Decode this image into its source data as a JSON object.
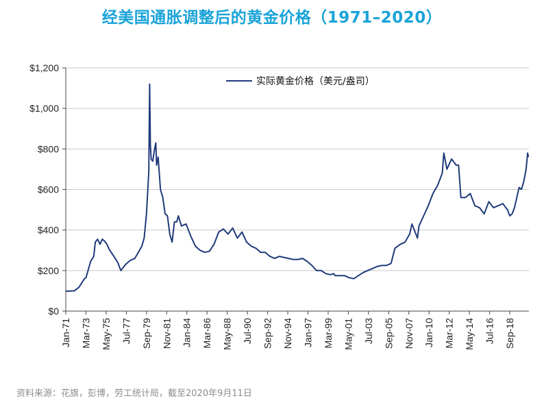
{
  "source": "资料来源：花旗，彭博，劳工统计局，截至2020年9月11日",
  "colors": {
    "title": "#1aa3d9",
    "series": "#1f3a7a",
    "grid": "#c8c8c8",
    "axis": "#444444",
    "source": "#8c8c8c"
  },
  "chart_data": {
    "type": "line",
    "title": "经美国通胀调整后的黄金价格（1971–2020）",
    "xlabel": "",
    "ylabel": "",
    "ylim": [
      0,
      1200
    ],
    "yticks": [
      0,
      200,
      400,
      600,
      800,
      1000,
      1200
    ],
    "ytick_labels": [
      "$0",
      "$200",
      "$400",
      "$600",
      "$800",
      "$1,000",
      "$1,200"
    ],
    "x_tick_labels": [
      "Jan-71",
      "Mar-73",
      "May-75",
      "Jul-77",
      "Sep-79",
      "Nov-81",
      "Jan-84",
      "Mar-86",
      "May-88",
      "Jul-90",
      "Sep-92",
      "Nov-94",
      "Jan-97",
      "Mar-99",
      "May-01",
      "Jul-03",
      "Sep-05",
      "Nov-07",
      "Jan-10",
      "Mar-12",
      "May-14",
      "Jul-16",
      "Sep-18"
    ],
    "grid": true,
    "legend_position": "top-center",
    "series": [
      {
        "name": "实际黄金价格（美元/盎司）",
        "x": [
          "1971-01",
          "1971-12",
          "1972-06",
          "1973-01",
          "1973-03",
          "1973-06",
          "1973-09",
          "1974-01",
          "1974-03",
          "1974-06",
          "1974-09",
          "1974-12",
          "1975-03",
          "1975-06",
          "1975-09",
          "1976-03",
          "1976-08",
          "1976-12",
          "1977-06",
          "1977-12",
          "1978-06",
          "1978-12",
          "1979-03",
          "1979-06",
          "1979-09",
          "1979-12",
          "1980-01",
          "1980-02",
          "1980-03",
          "1980-05",
          "1980-07",
          "1980-09",
          "1980-10",
          "1980-12",
          "1981-03",
          "1981-06",
          "1981-09",
          "1981-12",
          "1982-03",
          "1982-06",
          "1982-09",
          "1982-12",
          "1983-02",
          "1983-06",
          "1983-12",
          "1984-06",
          "1984-12",
          "1985-06",
          "1985-12",
          "1986-06",
          "1986-12",
          "1987-06",
          "1987-12",
          "1988-06",
          "1988-12",
          "1989-06",
          "1989-12",
          "1990-06",
          "1990-12",
          "1991-06",
          "1991-12",
          "1992-06",
          "1992-12",
          "1993-06",
          "1993-12",
          "1994-06",
          "1994-12",
          "1995-06",
          "1995-12",
          "1996-06",
          "1996-12",
          "1997-06",
          "1997-12",
          "1998-06",
          "1998-12",
          "1999-06",
          "1999-10",
          "1999-12",
          "2000-06",
          "2000-12",
          "2001-06",
          "2001-12",
          "2002-06",
          "2002-12",
          "2003-06",
          "2003-12",
          "2004-06",
          "2004-12",
          "2005-06",
          "2005-12",
          "2006-05",
          "2006-12",
          "2007-06",
          "2007-12",
          "2008-03",
          "2008-10",
          "2008-12",
          "2009-06",
          "2009-12",
          "2010-06",
          "2010-12",
          "2011-06",
          "2011-08",
          "2011-12",
          "2012-06",
          "2012-12",
          "2013-03",
          "2013-06",
          "2013-12",
          "2014-06",
          "2014-12",
          "2015-06",
          "2015-12",
          "2016-06",
          "2016-12",
          "2017-06",
          "2017-12",
          "2018-06",
          "2018-09",
          "2018-12",
          "2019-03",
          "2019-06",
          "2019-09",
          "2019-12",
          "2020-03",
          "2020-06",
          "2020-08",
          "2020-09"
        ],
        "values": [
          98,
          100,
          118,
          160,
          165,
          205,
          245,
          270,
          340,
          355,
          330,
          355,
          345,
          330,
          305,
          270,
          240,
          200,
          230,
          250,
          260,
          300,
          320,
          360,
          480,
          690,
          1120,
          820,
          750,
          740,
          790,
          830,
          720,
          760,
          600,
          560,
          480,
          470,
          380,
          340,
          440,
          440,
          470,
          420,
          430,
          370,
          320,
          300,
          290,
          295,
          330,
          390,
          405,
          380,
          410,
          360,
          390,
          340,
          320,
          310,
          290,
          290,
          270,
          260,
          270,
          265,
          260,
          255,
          255,
          260,
          245,
          225,
          200,
          200,
          185,
          180,
          185,
          175,
          175,
          175,
          165,
          160,
          175,
          190,
          200,
          210,
          220,
          225,
          225,
          235,
          310,
          330,
          340,
          380,
          430,
          360,
          420,
          470,
          520,
          580,
          620,
          680,
          780,
          700,
          750,
          720,
          720,
          560,
          560,
          580,
          520,
          510,
          480,
          540,
          510,
          520,
          530,
          500,
          470,
          480,
          510,
          560,
          610,
          600,
          640,
          700,
          780,
          760
        ]
      }
    ]
  }
}
